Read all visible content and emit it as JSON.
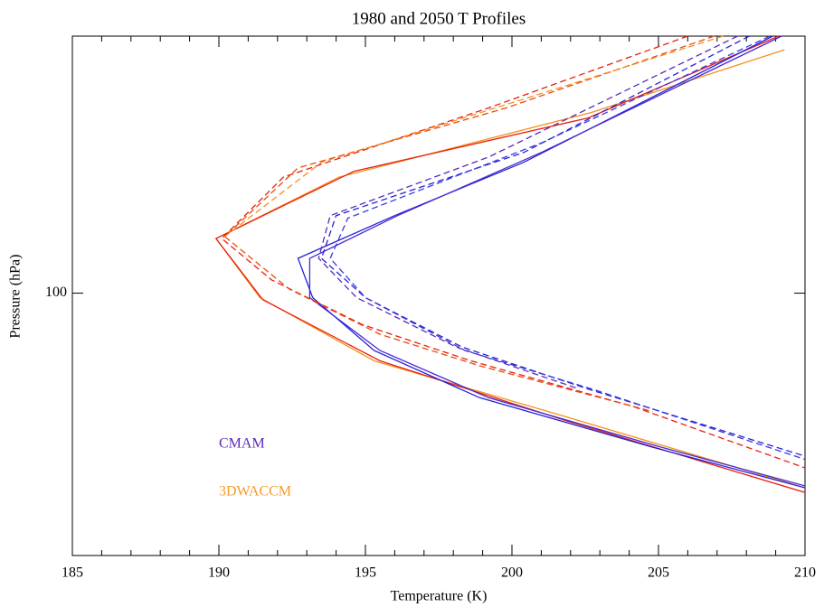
{
  "chart_data": {
    "type": "line",
    "title": "1980 and 2050 T Profiles",
    "x_label": "Temperature (K)",
    "y_label": "Pressure (hPa)",
    "xlim": [
      185,
      210
    ],
    "xticks": [
      185,
      190,
      195,
      200,
      205,
      210
    ],
    "xminorticks": [
      186,
      187,
      188,
      189,
      191,
      192,
      193,
      194,
      196,
      197,
      198,
      199,
      201,
      202,
      203,
      204,
      206,
      207,
      208,
      209
    ],
    "ylim": [
      320,
      32
    ],
    "yticks": [
      100
    ],
    "ylog": true,
    "annotations": [
      {
        "text": "CMAM",
        "color": "#5a2ab8"
      },
      {
        "text": "3DWACCM",
        "color": "#f59a2a"
      }
    ],
    "series": [
      {
        "color": "#f5901e",
        "dash": false,
        "x": [
          209.3,
          202.7,
          194.1,
          189.9,
          191.4,
          195.3,
          201.7,
          210.0
        ],
        "values": [
          34.0,
          44.9,
          59.8,
          78.5,
          102,
          135,
          172,
          237
        ]
      },
      {
        "color": "#e8200f",
        "dash": false,
        "x": [
          209.1,
          202.6,
          194.6,
          189.9,
          191.5,
          195.5,
          201.7,
          210.0
        ],
        "values": [
          32.0,
          46.0,
          58.3,
          78.5,
          103,
          135,
          175,
          242
        ]
      },
      {
        "color": "#2323d8",
        "dash": false,
        "x": [
          208.9,
          200.4,
          196.0,
          192.7,
          193.2,
          195.3,
          198.9,
          204.8,
          210.0
        ],
        "values": [
          32.0,
          56.0,
          70.9,
          85.7,
          102,
          129,
          159,
          198,
          237
        ]
      },
      {
        "color": "#4a2ad0",
        "dash": false,
        "x": [
          209.2,
          201.0,
          196.1,
          193.1,
          193.1,
          195.5,
          199.2,
          205.1,
          210.0
        ],
        "values": [
          32.0,
          53.6,
          70.9,
          85.7,
          102,
          129,
          159,
          198,
          235
        ]
      },
      {
        "color": "#e8200f",
        "dash": true,
        "x": [
          206.0,
          199.2,
          192.2,
          190.1,
          191.8,
          194.9,
          198.6,
          204.1,
          210.0
        ],
        "values": [
          32.0,
          44.0,
          59.8,
          78.5,
          94.3,
          115,
          135,
          165,
          217
        ]
      },
      {
        "color": "#e84a0f",
        "dash": true,
        "x": [
          206.9,
          199.8,
          192.7,
          190.2,
          192.4,
          195.5,
          198.9,
          204.8
        ],
        "values": [
          32.0,
          44.0,
          57.4,
          77.8,
          98.2,
          120,
          138,
          169
        ]
      },
      {
        "color": "#f5901e",
        "dash": true,
        "x": [
          207.2,
          200.4,
          193.5,
          190.2
        ],
        "values": [
          32.0,
          42.3,
          56.0,
          77.8
        ]
      },
      {
        "color": "#2323d8",
        "dash": true,
        "x": [
          208.1,
          200.4,
          194.0,
          193.5,
          195.0,
          198.3,
          202.6,
          210.0
        ],
        "values": [
          32.0,
          53.6,
          70.9,
          85.7,
          102,
          127,
          153,
          206
        ]
      },
      {
        "color": "#3a3ae0",
        "dash": true,
        "x": [
          208.8,
          201.0,
          194.4,
          193.8,
          195.0,
          198.4,
          202.9,
          210.0
        ],
        "values": [
          32.0,
          51.4,
          71.7,
          85.7,
          102,
          129,
          154,
          209
        ]
      },
      {
        "color": "#5a2ab8",
        "dash": true,
        "x": [
          207.7,
          199.2,
          193.8,
          193.4,
          194.7,
          198.1,
          202.3
        ],
        "values": [
          32.0,
          54.7,
          70.9,
          85.7,
          102,
          127,
          153
        ]
      }
    ]
  }
}
